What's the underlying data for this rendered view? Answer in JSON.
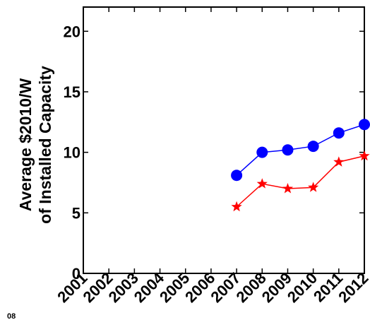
{
  "chart_data": {
    "type": "line",
    "x": [
      "2001",
      "2002",
      "2003",
      "2004",
      "2005",
      "2006",
      "2007",
      "2008",
      "2009",
      "2010",
      "2011",
      "2012"
    ],
    "ylabel": [
      "Average $2010/W",
      "of Installed Capacity"
    ],
    "ylim": [
      0,
      22
    ],
    "yticks": [
      "0",
      "5",
      "10",
      "15",
      "20"
    ],
    "grid": false,
    "series": [
      {
        "color": "#0000ff",
        "marker": "circle",
        "values": [
          null,
          null,
          null,
          null,
          null,
          null,
          8.1,
          10.0,
          10.2,
          10.5,
          11.6,
          12.3
        ]
      },
      {
        "color": "#ff0000",
        "marker": "star",
        "values": [
          null,
          null,
          null,
          null,
          null,
          null,
          5.5,
          7.4,
          7.0,
          7.1,
          9.2,
          9.7
        ]
      }
    ],
    "corner_text": "08"
  }
}
